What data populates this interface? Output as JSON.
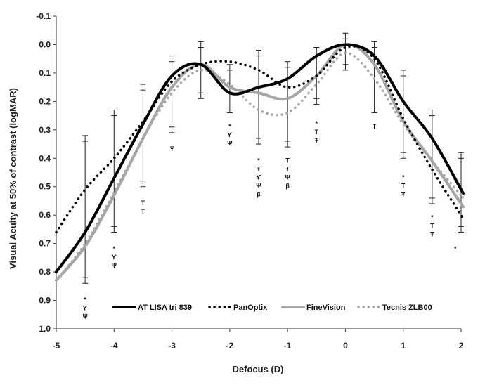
{
  "chart_data": {
    "type": "line",
    "title": "",
    "xlabel": "Defocus (D)",
    "ylabel": "Visual Acuity at 50% of contrast (logMAR)",
    "xlim": [
      -5,
      2
    ],
    "ylim": [
      -0.1,
      1.0
    ],
    "y_reversed": true,
    "grid": false,
    "legend_position": "bottom-center",
    "x_ticks": [
      "-5",
      "-4",
      "-3",
      "-2",
      "-1",
      "0",
      "1",
      "2"
    ],
    "y_ticks": [
      "-0.1",
      "0.0",
      "0.1",
      "0.2",
      "0.3",
      "0.4",
      "0.5",
      "0.6",
      "0.7",
      "0.8",
      "0.9",
      "1.0"
    ],
    "x": [
      -4.5,
      -4.0,
      -3.5,
      -3.0,
      -2.5,
      -2.0,
      -1.5,
      -1.0,
      -0.5,
      0.0,
      0.5,
      1.0,
      1.5,
      2.0
    ],
    "series": [
      {
        "name": "AT LISA tri 839",
        "color": "#000000",
        "style": "solid",
        "endpoints": {
          "x_start": -5.0,
          "y_start": 0.8,
          "x_end": 2.0,
          "y_end": 0.51
        },
        "values": [
          0.66,
          0.47,
          0.28,
          0.11,
          0.07,
          0.17,
          0.15,
          0.12,
          0.04,
          0.0,
          0.04,
          0.2,
          0.33,
          0.51
        ]
      },
      {
        "name": "PanOptix",
        "color": "#000000",
        "style": "dotted",
        "endpoints": {
          "x_start": -5.0,
          "y_start": 0.66,
          "x_end": 2.0,
          "y_end": 0.6
        },
        "values": [
          0.51,
          0.4,
          0.27,
          0.13,
          0.07,
          0.06,
          0.09,
          0.15,
          0.11,
          0.01,
          0.05,
          0.26,
          0.44,
          0.6
        ]
      },
      {
        "name": "FineVision",
        "color": "#a6a6a6",
        "style": "solid",
        "endpoints": {
          "x_start": -5.0,
          "y_start": 0.83,
          "x_end": 2.0,
          "y_end": 0.56
        },
        "values": [
          0.71,
          0.53,
          0.33,
          0.15,
          0.07,
          0.15,
          0.17,
          0.19,
          0.11,
          0.0,
          0.07,
          0.27,
          0.41,
          0.56
        ]
      },
      {
        "name": "Tecnis ZLB00",
        "color": "#a6a6a6",
        "style": "dotted",
        "endpoints": {
          "x_start": -5.0,
          "y_start": 0.83,
          "x_end": 2.0,
          "y_end": 0.53
        },
        "values": [
          0.7,
          0.52,
          0.33,
          0.17,
          0.09,
          0.14,
          0.23,
          0.24,
          0.14,
          0.03,
          0.12,
          0.28,
          0.41,
          0.53
        ]
      }
    ],
    "error_bars": [
      {
        "x": -4.5,
        "low": 0.32,
        "high": 0.84
      },
      {
        "x": -4.0,
        "low": 0.23,
        "high": 0.66
      },
      {
        "x": -3.5,
        "low": 0.14,
        "high": 0.5
      },
      {
        "x": -3.0,
        "low": 0.04,
        "high": 0.31
      },
      {
        "x": -2.5,
        "low": -0.01,
        "high": 0.19
      },
      {
        "x": -2.0,
        "low": 0.07,
        "high": 0.24
      },
      {
        "x": -1.5,
        "low": 0.02,
        "high": 0.35
      },
      {
        "x": -1.0,
        "low": 0.06,
        "high": 0.36
      },
      {
        "x": -0.5,
        "low": 0.01,
        "high": 0.21
      },
      {
        "x": 0.0,
        "low": -0.04,
        "high": 0.09
      },
      {
        "x": 0.5,
        "low": -0.01,
        "high": 0.24
      },
      {
        "x": 1.0,
        "low": 0.09,
        "high": 0.4
      },
      {
        "x": 1.5,
        "low": 0.23,
        "high": 0.56
      },
      {
        "x": 2.0,
        "low": 0.38,
        "high": 0.66
      }
    ],
    "significance_annotations": [
      {
        "x": -4.5,
        "y": 0.905,
        "lines": [
          "*",
          "ϒ",
          "Ψ"
        ]
      },
      {
        "x": -4.0,
        "y": 0.725,
        "lines": [
          "*",
          "ϒ",
          "Ψ"
        ]
      },
      {
        "x": -3.5,
        "y": 0.565,
        "lines": [
          "T",
          "Ŧ"
        ]
      },
      {
        "x": -3.0,
        "y": 0.375,
        "lines": [
          "Ŧ"
        ]
      },
      {
        "x": -2.0,
        "y": 0.295,
        "lines": [
          "*",
          "ϒ",
          "Ψ"
        ]
      },
      {
        "x": -1.5,
        "y": 0.415,
        "lines": [
          "*",
          "Ŧ",
          "ϒ",
          "Ψ",
          "β"
        ]
      },
      {
        "x": -1.0,
        "y": 0.415,
        "lines": [
          "T",
          "Ŧ",
          "Ψ",
          "β"
        ]
      },
      {
        "x": -0.5,
        "y": 0.285,
        "lines": [
          "*",
          "T",
          "Ŧ"
        ]
      },
      {
        "x": 0.5,
        "y": 0.295,
        "lines": [
          "Ŧ"
        ]
      },
      {
        "x": 1.0,
        "y": 0.475,
        "lines": [
          "*",
          "T",
          "Ŧ"
        ]
      },
      {
        "x": 1.5,
        "y": 0.615,
        "lines": [
          "*",
          "T",
          "Ŧ"
        ]
      },
      {
        "x": 1.9,
        "y": 0.725,
        "lines": [
          "*"
        ]
      }
    ]
  }
}
